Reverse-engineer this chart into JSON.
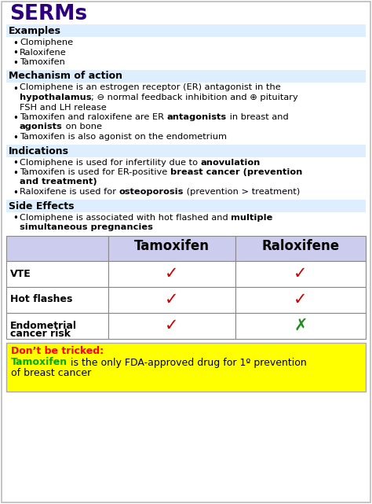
{
  "title": "SERMs",
  "title_color": "#2E0080",
  "bg_color": "#FFFFFF",
  "border_color": "#BBBBBB",
  "section_bg": "#DDEEFF",
  "section_label_color": "#000000",
  "body_fontsize": 8.2,
  "sections": [
    {
      "label": "Examples",
      "bullets": [
        [
          [
            "Clomiphene",
            false
          ]
        ],
        [
          [
            "Raloxifene",
            false
          ]
        ],
        [
          [
            "Tamoxifen",
            false
          ]
        ]
      ]
    },
    {
      "label": "Mechanism of action",
      "bullets": [
        [
          [
            "Clomiphene is an estrogen receptor (ER) antagonist in the",
            false
          ]
        ],
        [
          [
            "hypothalamus",
            true
          ],
          [
            "; ⊖ normal feedback inhibition and ⊕ pituitary",
            false
          ]
        ],
        [
          [
            "FSH and LH release",
            false
          ]
        ],
        [
          [
            "Tamoxifen and raloxifene are ER ",
            false
          ],
          [
            "antagonists",
            true
          ],
          [
            " in breast and",
            false
          ]
        ],
        [
          [
            "agonists",
            true
          ],
          [
            " on bone",
            false
          ]
        ],
        [
          [
            "Tamoxifen is also agonist on the endometrium",
            false
          ]
        ]
      ],
      "bullet_starts": [
        0,
        3,
        5
      ]
    },
    {
      "label": "Indications",
      "bullets": [
        [
          [
            "Clomiphene is used for infertility due to ",
            false
          ],
          [
            "anovulation",
            true
          ]
        ],
        [
          [
            "Tamoxifen is used for ER-positive ",
            false
          ],
          [
            "breast cancer (prevention",
            true
          ]
        ],
        [
          [
            "and treatment)",
            true
          ]
        ],
        [
          [
            "Raloxifene is used for ",
            false
          ],
          [
            "osteoporosis",
            true
          ],
          [
            " (prevention > treatment)",
            false
          ]
        ]
      ],
      "bullet_starts": [
        0,
        1,
        3
      ]
    },
    {
      "label": "Side Effects",
      "bullets": [
        [
          [
            "Clomiphene is associated with hot flashed and ",
            false
          ],
          [
            "multiple",
            true
          ]
        ],
        [
          [
            "simultaneous pregnancies",
            true
          ]
        ]
      ],
      "bullet_starts": [
        0
      ]
    }
  ],
  "table": {
    "header_bg": "#CCCCEE",
    "col2_header": "Tamoxifen",
    "col3_header": "Raloxifene",
    "rows": [
      {
        "label": "VTE",
        "col2": "check_red",
        "col3": "check_red"
      },
      {
        "label": "Hot flashes",
        "col2": "check_red",
        "col3": "check_red"
      },
      {
        "label": "Endometrial\ncancer risk",
        "col2": "check_red",
        "col3": "x_green"
      }
    ]
  },
  "trick_box": {
    "bg": "#FFFF00",
    "label_color": "#FF0000",
    "label": "Don’t be tricked:",
    "text_color": "#000000",
    "highlight_color": "#00AA00",
    "line2_before": " is the only FDA-approved drug for 1º prevention",
    "line3": "of breast cancer",
    "highlight_word": "Tamoxifen"
  }
}
